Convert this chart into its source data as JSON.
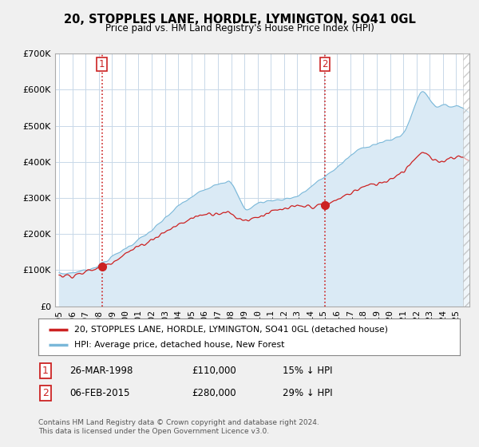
{
  "title": "20, STOPPLES LANE, HORDLE, LYMINGTON, SO41 0GL",
  "subtitle": "Price paid vs. HM Land Registry's House Price Index (HPI)",
  "ylim": [
    0,
    700000
  ],
  "yticks": [
    0,
    100000,
    200000,
    300000,
    400000,
    500000,
    600000,
    700000
  ],
  "legend_line1": "20, STOPPLES LANE, HORDLE, LYMINGTON, SO41 0GL (detached house)",
  "legend_line2": "HPI: Average price, detached house, New Forest",
  "annotation1_date": "26-MAR-1998",
  "annotation1_price": "£110,000",
  "annotation1_hpi": "15% ↓ HPI",
  "annotation2_date": "06-FEB-2015",
  "annotation2_price": "£280,000",
  "annotation2_hpi": "29% ↓ HPI",
  "copyright": "Contains HM Land Registry data © Crown copyright and database right 2024.\nThis data is licensed under the Open Government Licence v3.0.",
  "hpi_color": "#7ab8d9",
  "hpi_fill_color": "#daeaf5",
  "price_color": "#cc2222",
  "annotation_box_color": "#cc2222",
  "background_color": "#f0f0f0",
  "plot_bg_color": "#ffffff",
  "grid_color": "#c8d8e8",
  "vline_color": "#cc2222",
  "sale1_year": 1998.23,
  "sale1_price": 110000,
  "sale2_year": 2015.09,
  "sale2_price": 280000,
  "xlim_left": 1994.7,
  "xlim_right": 2026.0
}
